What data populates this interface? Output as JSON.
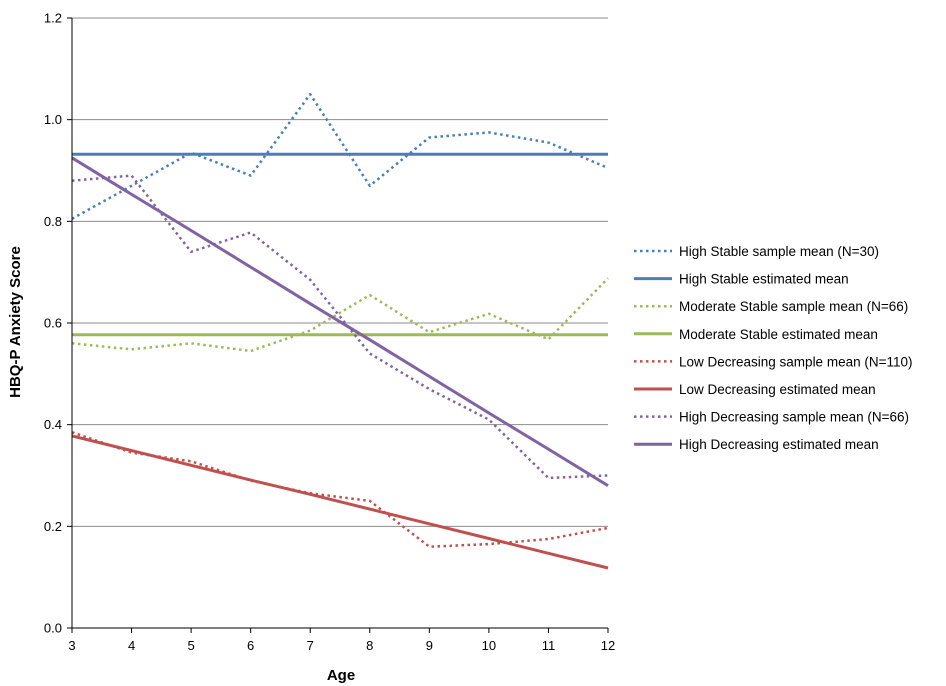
{
  "chart_data": {
    "type": "line",
    "title": "",
    "xlabel": "Age",
    "ylabel": "HBQ-P Anxiety Score",
    "xlim": [
      3,
      12
    ],
    "ylim": [
      0.0,
      1.2
    ],
    "x_ticks": [
      "3",
      "4",
      "5",
      "6",
      "7",
      "8",
      "9",
      "10",
      "11",
      "12"
    ],
    "y_ticks": [
      "0.0",
      "0.2",
      "0.4",
      "0.6",
      "0.8",
      "1.0",
      "1.2"
    ],
    "grid": "horizontal",
    "legend_position": "right",
    "x": [
      3,
      4,
      5,
      6,
      7,
      8,
      9,
      10,
      11,
      12
    ],
    "series": [
      {
        "name": "High Stable sample mean (N=30)",
        "color": "#4a7ebb",
        "style": "dotted",
        "values": [
          0.805,
          0.87,
          0.935,
          0.89,
          1.05,
          0.87,
          0.965,
          0.975,
          0.955,
          0.905
        ]
      },
      {
        "name": "High Stable estimated mean",
        "color": "#4a7ebb",
        "style": "solid",
        "values": [
          0.932,
          0.932,
          0.932,
          0.932,
          0.932,
          0.932,
          0.932,
          0.932,
          0.932,
          0.932
        ]
      },
      {
        "name": "Moderate Stable sample mean (N=66)",
        "color": "#9bbb59",
        "style": "dotted",
        "values": [
          0.56,
          0.548,
          0.56,
          0.545,
          0.585,
          0.655,
          0.582,
          0.618,
          0.568,
          0.688
        ]
      },
      {
        "name": "Moderate Stable estimated mean",
        "color": "#9bbb59",
        "style": "solid",
        "values": [
          0.577,
          0.577,
          0.577,
          0.577,
          0.577,
          0.577,
          0.577,
          0.577,
          0.577,
          0.577
        ]
      },
      {
        "name": "Low Decreasing sample mean (N=110)",
        "color": "#c0504d",
        "style": "dotted",
        "values": [
          0.385,
          0.345,
          0.328,
          0.29,
          0.265,
          0.25,
          0.16,
          0.165,
          0.175,
          0.197
        ]
      },
      {
        "name": "Low Decreasing estimated mean",
        "color": "#c0504d",
        "style": "solid",
        "values": [
          0.378,
          0.349,
          0.32,
          0.291,
          0.263,
          0.234,
          0.205,
          0.176,
          0.147,
          0.118
        ]
      },
      {
        "name": "High Decreasing sample mean (N=66)",
        "color": "#8064a2",
        "style": "dotted",
        "values": [
          0.88,
          0.89,
          0.74,
          0.778,
          0.685,
          0.54,
          0.47,
          0.41,
          0.295,
          0.3
        ]
      },
      {
        "name": "High Decreasing estimated mean",
        "color": "#8064a2",
        "style": "solid",
        "values": [
          0.925,
          0.853,
          0.782,
          0.71,
          0.638,
          0.567,
          0.495,
          0.423,
          0.352,
          0.28
        ]
      }
    ]
  }
}
